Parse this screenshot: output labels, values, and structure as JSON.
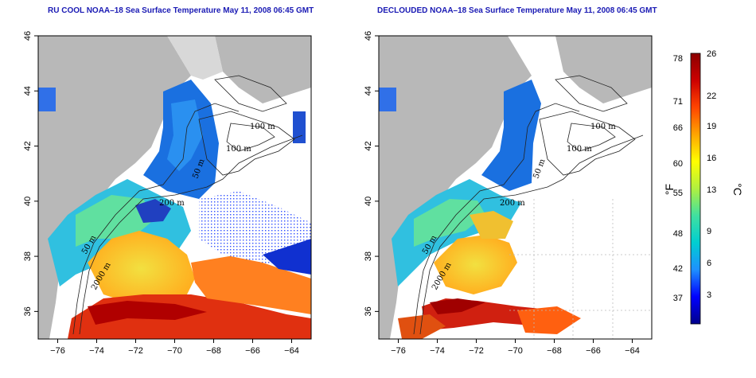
{
  "panels": [
    {
      "title": "RU COOL NOAA–18 Sea Surface Temperature May 11, 2008 06:45 GMT",
      "contours": [
        "100 m",
        "100 m",
        "50 m",
        "200 m",
        "50 m",
        "2000 m"
      ]
    },
    {
      "title": "DECLOUDED NOAA–18 Sea Surface Temperature May 11, 2008 06:45 GMT",
      "contours": [
        "100 m",
        "100 m",
        "50 m",
        "200 m",
        "50 m",
        "2000 m"
      ]
    }
  ],
  "axes": {
    "x_ticks": [
      "−76",
      "−74",
      "−72",
      "−70",
      "−68",
      "−66",
      "−64"
    ],
    "y_ticks": [
      "36",
      "38",
      "40",
      "42",
      "44",
      "46"
    ],
    "x_range": [
      -77,
      -63
    ],
    "y_range": [
      35,
      46
    ]
  },
  "colorbar": {
    "unit_f": "°F",
    "unit_c": "°C",
    "f_ticks": [
      "78",
      "71",
      "66",
      "60",
      "55",
      "48",
      "42",
      "37"
    ],
    "c_ticks": [
      "26",
      "22",
      "19",
      "16",
      "13",
      "9",
      "6",
      "3"
    ],
    "colors": [
      "#00008b",
      "#0000ff",
      "#1e90ff",
      "#00ced1",
      "#40e0a0",
      "#b0f040",
      "#ffff00",
      "#ffa500",
      "#ff4500",
      "#cc0000",
      "#8b0000"
    ]
  }
}
